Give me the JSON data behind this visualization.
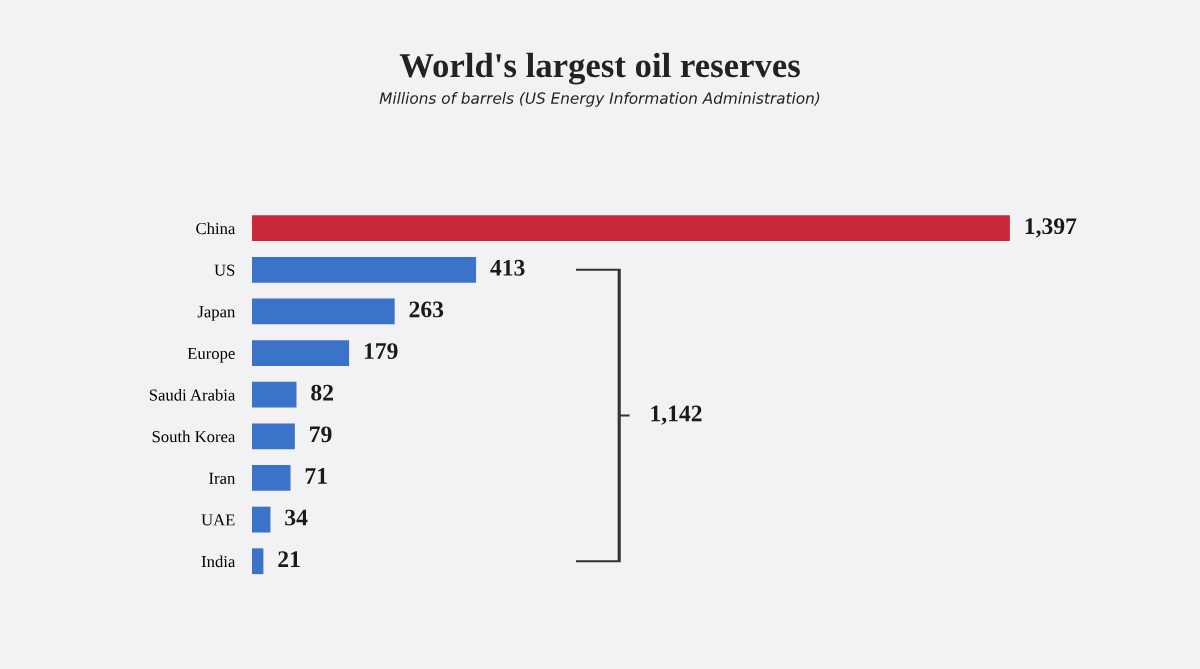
{
  "chart_data": {
    "type": "bar",
    "orientation": "horizontal",
    "title": "World's largest oil reserves",
    "subtitle": "Millions of barrels (US Energy Information Administration)",
    "categories": [
      "China",
      "US",
      "Japan",
      "Europe",
      "Saudi Arabia",
      "South Korea",
      "Iran",
      "UAE",
      "India"
    ],
    "values": [
      1397,
      413,
      263,
      179,
      82,
      79,
      71,
      34,
      21
    ],
    "colors": [
      "#c8283a",
      "#3b73c9",
      "#3b73c9",
      "#3b73c9",
      "#3b73c9",
      "#3b73c9",
      "#3b73c9",
      "#3b73c9",
      "#3b73c9"
    ],
    "value_labels": [
      "1,397",
      "413",
      "263",
      "179",
      "82",
      "79",
      "71",
      "34",
      "21"
    ],
    "annotations": [
      "1,142"
    ],
    "tick_labels": "y",
    "grid": false,
    "legend": false
  }
}
